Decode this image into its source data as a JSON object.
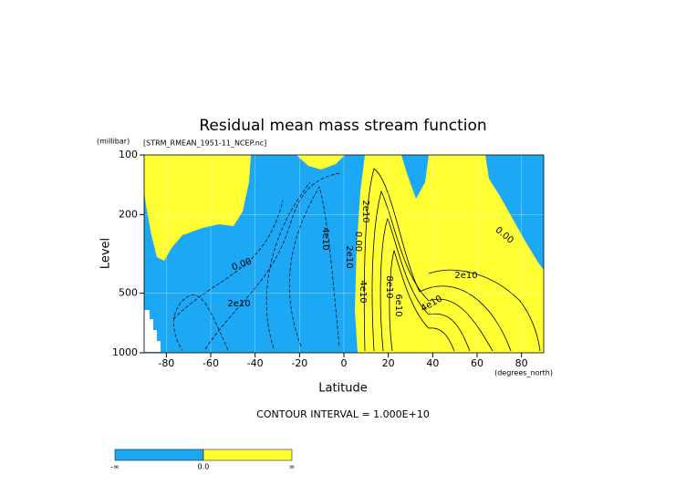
{
  "chart_data": {
    "type": "contour",
    "title": "Residual mean mass stream function",
    "dataset": "[STRM_RMEAN_1951-11_NCEP.nc]",
    "y_unit": "(millibar)",
    "y_label": "Level",
    "x_label": "Latitude",
    "x_unit": "(degrees_north)",
    "xlim": [
      -90,
      90
    ],
    "xticks": [
      -80,
      -60,
      -40,
      -20,
      0,
      20,
      40,
      60,
      80
    ],
    "ylim": [
      1000,
      100
    ],
    "yticks": [
      100,
      200,
      500,
      1000
    ],
    "y_log": true,
    "grid": true,
    "footer": "CONTOUR INTERVAL = 1.000E+10",
    "contour_labels": [
      "0.00",
      "2e10",
      "4e10",
      "2e10",
      "0.00",
      "2e10",
      "2e10",
      "0.00",
      "4e10",
      "8e10",
      "6e10",
      "4e10"
    ],
    "colorbar": {
      "colors": [
        "#1ca8f5",
        "#ffff33"
      ],
      "labels": [
        "-∞",
        "0.0",
        "∞"
      ]
    }
  }
}
